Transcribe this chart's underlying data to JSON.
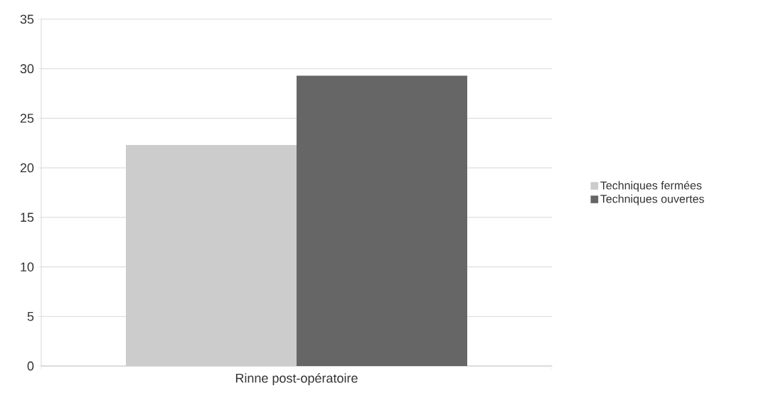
{
  "chart_data": {
    "type": "bar",
    "categories": [
      "Rinne post-opératoire"
    ],
    "series": [
      {
        "name": "Techniques fermées",
        "color": "#cccccc",
        "values": [
          22.3
        ]
      },
      {
        "name": "Techniques ouvertes",
        "color": "#666666",
        "values": [
          29.3
        ]
      }
    ],
    "ylim": [
      0,
      35
    ],
    "yticks": [
      0,
      5,
      10,
      15,
      20,
      25,
      30,
      35
    ],
    "grid": "y",
    "legend": "right"
  }
}
